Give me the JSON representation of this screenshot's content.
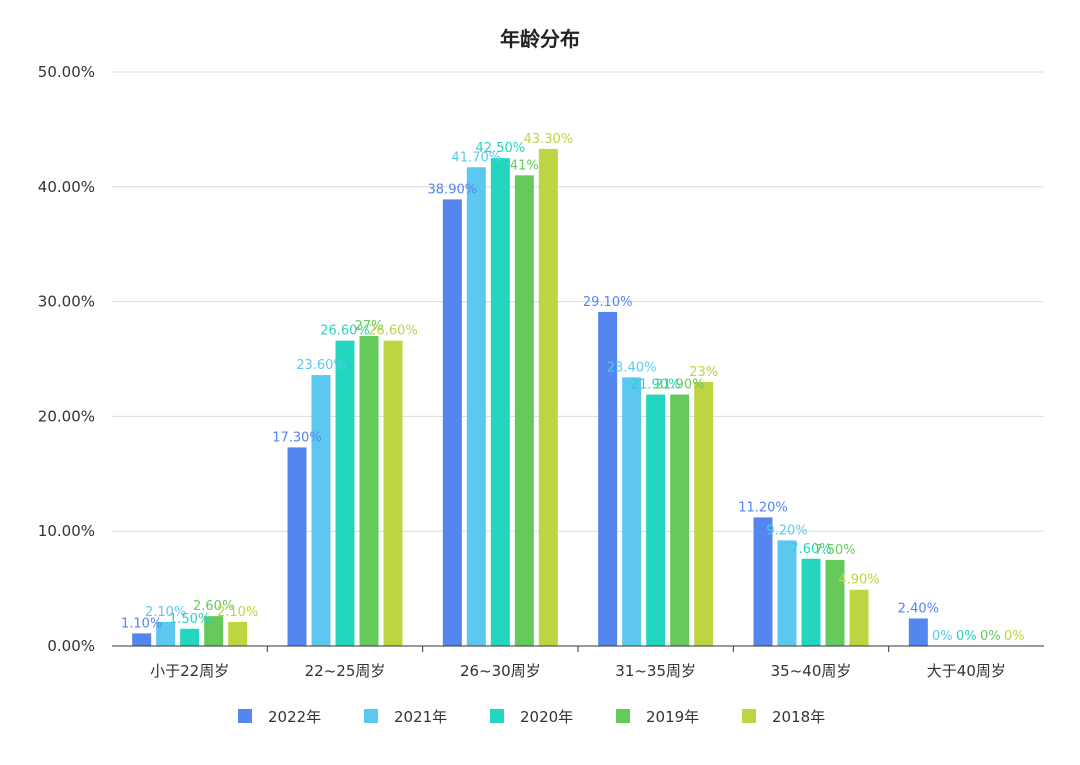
{
  "chart_data": {
    "type": "bar",
    "title": "年龄分布",
    "xlabel": "",
    "ylabel": "",
    "ylim": [
      0,
      50
    ],
    "yticks": [
      "0.00%",
      "10.00%",
      "20.00%",
      "30.00%",
      "40.00%",
      "50.00%"
    ],
    "grid": true,
    "legend_position": "bottom",
    "categories": [
      "小于22周岁",
      "22~25周岁",
      "26~30周岁",
      "31~35周岁",
      "35~40周岁",
      "大于40周岁"
    ],
    "series": [
      {
        "name": "2022年",
        "color": "#5585ee",
        "values": [
          1.1,
          17.3,
          38.9,
          29.1,
          11.2,
          2.4
        ],
        "labels": [
          "1.10%",
          "17.30%",
          "38.90%",
          "29.10%",
          "11.20%",
          "2.40%"
        ]
      },
      {
        "name": "2021年",
        "color": "#5cc8f0",
        "values": [
          2.1,
          23.6,
          41.7,
          23.4,
          9.2,
          0
        ],
        "labels": [
          "2.10%",
          "23.60%",
          "41.70%",
          "23.40%",
          "9.20%",
          "0%"
        ]
      },
      {
        "name": "2020年",
        "color": "#22d6c0",
        "values": [
          1.5,
          26.6,
          42.5,
          21.9,
          7.6,
          0
        ],
        "labels": [
          "1.50%",
          "26.60%",
          "42.50%",
          "21.90%",
          "7.60%",
          "0%"
        ]
      },
      {
        "name": "2019年",
        "color": "#66c95c",
        "values": [
          2.6,
          27,
          41,
          21.9,
          7.5,
          0
        ],
        "labels": [
          "2.60%",
          "27%",
          "41%",
          "21.90%",
          "7.50%",
          "0%"
        ]
      },
      {
        "name": "2018年",
        "color": "#bfd441",
        "values": [
          2.1,
          26.6,
          43.3,
          23,
          4.9,
          0
        ],
        "labels": [
          "2.10%",
          "26.60%",
          "43.30%",
          "23%",
          "4.90%",
          "0%"
        ]
      }
    ]
  }
}
